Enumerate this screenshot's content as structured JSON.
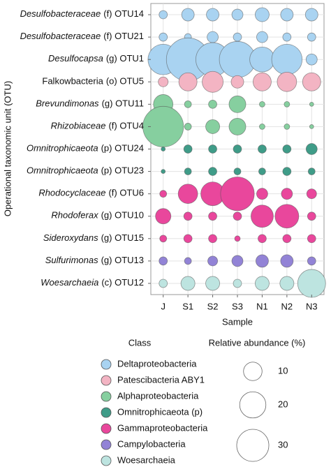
{
  "chart_data": {
    "type": "bubble",
    "xlabel": "Sample",
    "ylabel": "Operational taxonomic unit (OTU)",
    "categories": [
      "J",
      "S1",
      "S2",
      "S3",
      "N1",
      "N2",
      "N3"
    ],
    "classes_title": "Class",
    "classes": [
      {
        "name": "Deltaproteobacteria",
        "color": "#a9d3f1"
      },
      {
        "name": "Patescibacteria ABY1",
        "color": "#f3b4c3"
      },
      {
        "name": "Alphaproteobacteria",
        "color": "#86cf9f"
      },
      {
        "name": "Omnitrophicaeota (p)",
        "color": "#3f9c88"
      },
      {
        "name": "Gammaproteobacteria",
        "color": "#e9479c"
      },
      {
        "name": "Campylobacteria",
        "color": "#9283d6"
      },
      {
        "name": "Woesarchaeia",
        "color": "#bde4e0"
      }
    ],
    "rows": [
      {
        "taxon": "Desulfobacteraceae",
        "suffix": "(f) OTU14",
        "italic": true,
        "class": 0,
        "sizes": [
          2,
          4.6,
          4.6,
          3.6,
          5.7,
          4.6,
          4.6
        ]
      },
      {
        "taxon": "Desulfobacteraceae",
        "suffix": "(f) OTU21",
        "italic": true,
        "class": 0,
        "sizes": [
          2,
          1.4,
          3.6,
          2,
          3.6,
          2,
          2
        ]
      },
      {
        "taxon": "Desulfocapsa",
        "suffix": "(g) OTU1",
        "italic": true,
        "class": 0,
        "sizes": [
          27,
          54,
          33,
          38,
          18,
          27,
          3.6
        ]
      },
      {
        "taxon": "Falkowbacteria",
        "suffix": "(o) OTU5",
        "italic": false,
        "class": 1,
        "sizes": [
          2.8,
          9.6,
          12.8,
          4.6,
          9.6,
          11,
          9.6
        ]
      },
      {
        "taxon": "Brevundimonas",
        "suffix": "(g) OTU11",
        "italic": true,
        "class": 2,
        "sizes": [
          11,
          1.4,
          2,
          8.2,
          0.9,
          0.9,
          0.5
        ]
      },
      {
        "taxon": "Rhizobiaceae",
        "suffix": "(f) OTU4",
        "italic": true,
        "class": 2,
        "sizes": [
          48,
          1.4,
          5.7,
          8.2,
          0.9,
          0.9,
          0.5
        ]
      },
      {
        "taxon": "Omnitrophicaeota",
        "suffix": "(p) OTU24",
        "italic": true,
        "class": 3,
        "sizes": [
          0.5,
          2,
          2,
          2,
          2,
          2,
          3.6
        ]
      },
      {
        "taxon": "Omnitrophicaeota",
        "suffix": "(p) OTU23",
        "italic": true,
        "class": 3,
        "sizes": [
          0.5,
          1.4,
          2,
          1.4,
          1.4,
          2,
          1.4
        ]
      },
      {
        "taxon": "Rhodocyclaceae",
        "suffix": "(f) OTU6",
        "italic": true,
        "class": 4,
        "sizes": [
          1.4,
          11,
          16.4,
          33,
          3.6,
          3.6,
          2.8
        ]
      },
      {
        "taxon": "Rhodoferax",
        "suffix": "(g) OTU10",
        "italic": true,
        "class": 4,
        "sizes": [
          6.9,
          2,
          2,
          2,
          14.5,
          16.4,
          2
        ]
      },
      {
        "taxon": "Sideroxydans",
        "suffix": "(g) OTU15",
        "italic": true,
        "class": 4,
        "sizes": [
          1.4,
          2,
          2,
          0.9,
          2,
          2,
          2
        ]
      },
      {
        "taxon": "Sulfurimonas",
        "suffix": "(g) OTU13",
        "italic": true,
        "class": 5,
        "sizes": [
          2,
          1.4,
          2.8,
          3.6,
          4.6,
          4.6,
          2
        ]
      },
      {
        "taxon": "Woesarchaeia",
        "suffix": "(c) OTU12",
        "italic": true,
        "class": 6,
        "sizes": [
          2,
          5.7,
          5.7,
          2,
          5.7,
          5.7,
          22.7
        ]
      }
    ],
    "size_legend_title": "Relative abundance (%)",
    "size_legend": [
      10,
      20,
      30
    ],
    "grid": true
  }
}
